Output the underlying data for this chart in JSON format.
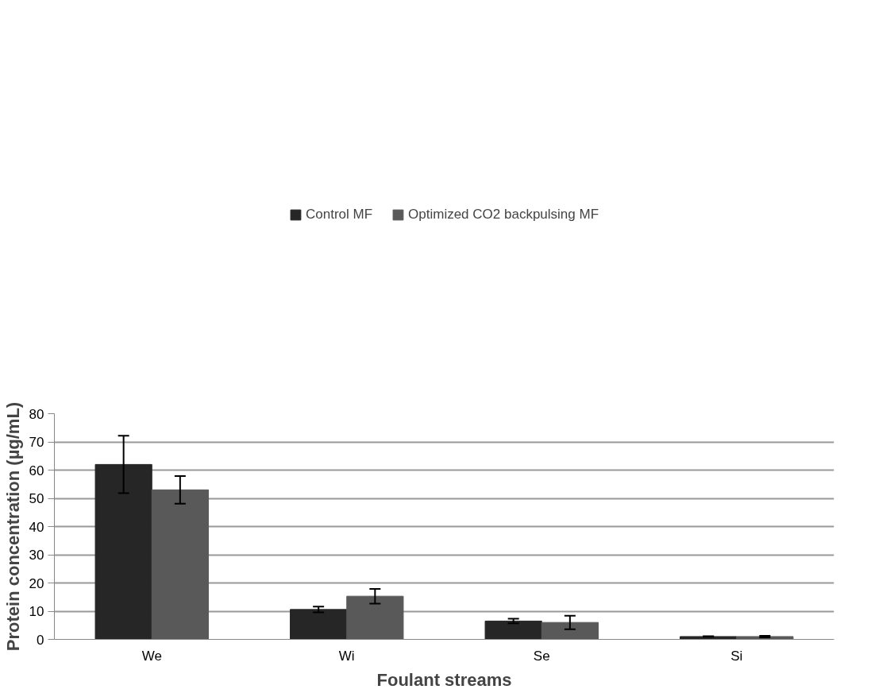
{
  "chart_data": {
    "type": "bar",
    "xlabel": "Foulant streams",
    "ylabel": "Protein concentration (µg/mL)",
    "categories": [
      "We",
      "Wi",
      "Se",
      "Si"
    ],
    "series": [
      {
        "name": "Control MF",
        "color": "#262626",
        "values": [
          62.0,
          10.6,
          6.5,
          1.0
        ],
        "errors": [
          10.2,
          1.0,
          0.8,
          0.1
        ]
      },
      {
        "name": "Optimized CO2 backpulsing MF",
        "color": "#595959",
        "values": [
          53.0,
          15.3,
          6.0,
          1.0
        ],
        "errors": [
          4.9,
          2.6,
          2.4,
          0.3
        ]
      }
    ],
    "ylim": [
      0,
      80
    ],
    "yticks": [
      0,
      10,
      20,
      30,
      40,
      50,
      60,
      70,
      80
    ],
    "grid": "y",
    "legend": "top"
  }
}
